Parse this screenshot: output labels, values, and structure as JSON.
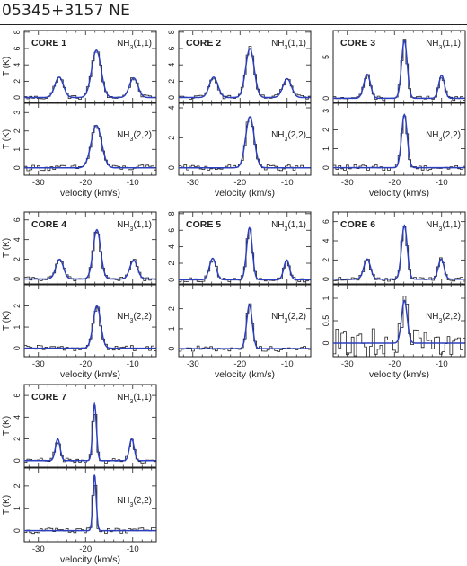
{
  "figure": {
    "title": "05345+3157 NE",
    "colors": {
      "spectrum": "#222222",
      "fit": "#2b3fbf"
    }
  },
  "chart_data": [
    {
      "type": "line",
      "core": "CORE 1",
      "transition": "NH3(1,1)",
      "ylabel": "T (K)",
      "ylim": [
        -0.6,
        8.2
      ],
      "yticks": [
        0,
        2,
        4,
        6,
        8
      ],
      "xlim": [
        -33,
        -5
      ],
      "xticks": [
        -30,
        -20,
        -10
      ],
      "tick_labels_visible": false,
      "series": [
        {
          "name": "fit",
          "peaks": [
            [
              -25.6,
              2.5,
              0.9
            ],
            [
              -17.7,
              5.8,
              1.0
            ],
            [
              -9.8,
              2.4,
              0.9
            ]
          ]
        }
      ]
    },
    {
      "type": "line",
      "core": "CORE 1",
      "transition": "NH3(2,2)",
      "ylabel": "T (K)",
      "ylim": [
        -0.4,
        3.5
      ],
      "yticks": [
        0,
        1,
        2,
        3
      ],
      "xlim": [
        -33,
        -5
      ],
      "xticks": [
        -30,
        -20,
        -10
      ],
      "xlabel": "velocity (km/s)",
      "tick_labels_visible": true,
      "series": [
        {
          "name": "fit",
          "peaks": [
            [
              -17.7,
              2.3,
              1.1
            ]
          ]
        }
      ]
    },
    {
      "type": "line",
      "core": "CORE 2",
      "transition": "NH3(1,1)",
      "ylabel": "",
      "ylim": [
        -0.6,
        8.2
      ],
      "yticks": [
        0,
        2,
        4,
        6,
        8
      ],
      "xlim": [
        -33,
        -5
      ],
      "xticks": [
        -30,
        -20,
        -10
      ],
      "tick_labels_visible": false,
      "series": [
        {
          "name": "fit",
          "peaks": [
            [
              -25.6,
              2.5,
              0.9
            ],
            [
              -17.9,
              6.0,
              0.9
            ],
            [
              -10.0,
              2.3,
              0.9
            ]
          ]
        }
      ]
    },
    {
      "type": "line",
      "core": "CORE 2",
      "transition": "NH3(2,2)",
      "ylabel": "",
      "ylim": [
        -0.5,
        4.3
      ],
      "yticks": [
        0,
        2,
        4
      ],
      "xlim": [
        -33,
        -5
      ],
      "xticks": [
        -30,
        -20,
        -10
      ],
      "xlabel": "velocity (km/s)",
      "tick_labels_visible": true,
      "series": [
        {
          "name": "fit",
          "peaks": [
            [
              -17.9,
              3.4,
              0.9
            ]
          ]
        }
      ]
    },
    {
      "type": "line",
      "core": "CORE 3",
      "transition": "NH3(1,1)",
      "ylabel": "",
      "ylim": [
        -0.5,
        8.2
      ],
      "yticks": [
        0,
        5
      ],
      "xlim": [
        -33,
        -5
      ],
      "xticks": [
        -30,
        -20,
        -10
      ],
      "tick_labels_visible": false,
      "series": [
        {
          "name": "fit",
          "peaks": [
            [
              -25.8,
              2.9,
              0.7
            ],
            [
              -17.9,
              7.0,
              0.6
            ],
            [
              -10.0,
              2.8,
              0.6
            ]
          ]
        }
      ]
    },
    {
      "type": "line",
      "core": "CORE 3",
      "transition": "NH3(2,2)",
      "ylabel": "",
      "ylim": [
        -0.4,
        3.4
      ],
      "yticks": [
        0,
        1,
        2,
        3
      ],
      "xlim": [
        -33,
        -5
      ],
      "xticks": [
        -30,
        -20,
        -10
      ],
      "xlabel": "velocity (km/s)",
      "tick_labels_visible": true,
      "series": [
        {
          "name": "fit",
          "peaks": [
            [
              -17.9,
              2.8,
              0.6
            ]
          ]
        }
      ]
    },
    {
      "type": "line",
      "core": "CORE 4",
      "transition": "NH3(1,1)",
      "ylabel": "T (K)",
      "ylim": [
        -0.5,
        6.8
      ],
      "yticks": [
        0,
        2,
        4,
        6
      ],
      "xlim": [
        -33,
        -5
      ],
      "xticks": [
        -30,
        -20,
        -10
      ],
      "tick_labels_visible": false,
      "series": [
        {
          "name": "fit",
          "peaks": [
            [
              -25.5,
              2.0,
              0.8
            ],
            [
              -17.6,
              5.0,
              0.8
            ],
            [
              -9.8,
              1.9,
              0.8
            ]
          ]
        }
      ]
    },
    {
      "type": "line",
      "core": "CORE 4",
      "transition": "NH3(2,2)",
      "ylabel": "T (K)",
      "ylim": [
        -0.4,
        3.0
      ],
      "yticks": [
        0,
        1,
        2
      ],
      "xlim": [
        -33,
        -5
      ],
      "xticks": [
        -30,
        -20,
        -10
      ],
      "xlabel": "velocity (km/s)",
      "tick_labels_visible": true,
      "series": [
        {
          "name": "fit",
          "peaks": [
            [
              -17.6,
              2.0,
              0.8
            ]
          ]
        }
      ]
    },
    {
      "type": "line",
      "core": "CORE 5",
      "transition": "NH3(1,1)",
      "ylabel": "",
      "ylim": [
        -0.5,
        8.2
      ],
      "yticks": [
        0,
        2,
        4,
        6,
        8
      ],
      "xlim": [
        -33,
        -5
      ],
      "xticks": [
        -30,
        -20,
        -10
      ],
      "tick_labels_visible": false,
      "series": [
        {
          "name": "fit",
          "peaks": [
            [
              -25.8,
              2.6,
              0.7
            ],
            [
              -18.0,
              6.3,
              0.6
            ],
            [
              -10.1,
              2.4,
              0.6
            ]
          ]
        }
      ]
    },
    {
      "type": "line",
      "core": "CORE 5",
      "transition": "NH3(2,2)",
      "ylabel": "",
      "ylim": [
        -0.4,
        3.2
      ],
      "yticks": [
        0,
        1,
        2
      ],
      "xlim": [
        -33,
        -5
      ],
      "xticks": [
        -30,
        -20,
        -10
      ],
      "xlabel": "velocity (km/s)",
      "tick_labels_visible": true,
      "series": [
        {
          "name": "fit",
          "peaks": [
            [
              -18.0,
              2.2,
              0.6
            ]
          ]
        }
      ]
    },
    {
      "type": "line",
      "core": "CORE 6",
      "transition": "NH3(1,1)",
      "ylabel": "",
      "ylim": [
        -0.5,
        7.0
      ],
      "yticks": [
        0,
        2,
        4,
        6
      ],
      "xlim": [
        -33,
        -5
      ],
      "xticks": [
        -30,
        -20,
        -10
      ],
      "tick_labels_visible": false,
      "series": [
        {
          "name": "fit",
          "peaks": [
            [
              -25.8,
              2.1,
              0.7
            ],
            [
              -17.9,
              5.6,
              0.6
            ],
            [
              -10.1,
              2.1,
              0.6
            ]
          ]
        }
      ]
    },
    {
      "type": "line",
      "core": "CORE 6",
      "transition": "NH3(2,2)",
      "ylabel": "",
      "ylim": [
        -0.3,
        1.3
      ],
      "yticks": [
        0,
        0.5,
        1
      ],
      "xlim": [
        -33,
        -5
      ],
      "xticks": [
        -30,
        -20,
        -10
      ],
      "xlabel": "velocity (km/s)",
      "tick_labels_visible": true,
      "series": [
        {
          "name": "fit",
          "peaks": [
            [
              -17.9,
              0.95,
              0.6
            ]
          ]
        }
      ]
    },
    {
      "type": "line",
      "core": "CORE 7",
      "transition": "NH3(1,1)",
      "ylabel": "T (K)",
      "ylim": [
        -0.6,
        7.0
      ],
      "yticks": [
        0,
        2,
        4,
        6
      ],
      "xlim": [
        -33,
        -5
      ],
      "xticks": [
        -30,
        -20,
        -10
      ],
      "tick_labels_visible": false,
      "series": [
        {
          "name": "fit",
          "peaks": [
            [
              -25.9,
              2.0,
              0.5
            ],
            [
              -18.1,
              5.2,
              0.4
            ],
            [
              -10.2,
              2.0,
              0.5
            ]
          ]
        }
      ]
    },
    {
      "type": "line",
      "core": "CORE 7",
      "transition": "NH3(2,2)",
      "ylabel": "T (K)",
      "ylim": [
        -0.5,
        2.8
      ],
      "yticks": [
        0,
        1,
        2
      ],
      "xlim": [
        -33,
        -5
      ],
      "xticks": [
        -30,
        -20,
        -10
      ],
      "xlabel": "velocity (km/s)",
      "tick_labels_visible": true,
      "series": [
        {
          "name": "fit",
          "peaks": [
            [
              -18.1,
              2.5,
              0.35
            ]
          ]
        }
      ]
    }
  ]
}
